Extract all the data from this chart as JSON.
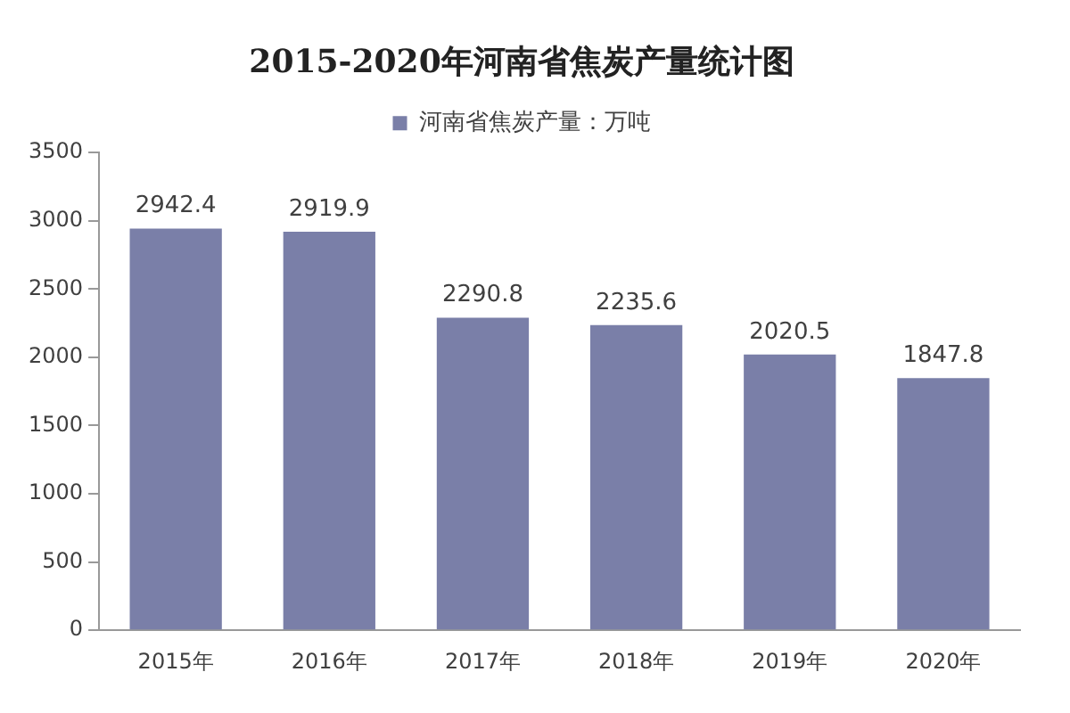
{
  "chart_data": {
    "type": "bar",
    "title": "2015-2020年河南省焦炭产量统计图",
    "categories": [
      "2015年",
      "2016年",
      "2017年",
      "2018年",
      "2019年",
      "2020年"
    ],
    "series": [
      {
        "name": "河南省焦炭产量：万吨",
        "color": "#7a7fa8",
        "values": [
          2942.4,
          2919.9,
          2290.8,
          2235.6,
          2020.5,
          1847.8
        ]
      }
    ],
    "ylim": [
      0,
      3500
    ],
    "yticks": [
      0,
      500,
      1000,
      1500,
      2000,
      2500,
      3000,
      3500
    ],
    "grid": false,
    "legend": "top",
    "data_labels": true
  }
}
